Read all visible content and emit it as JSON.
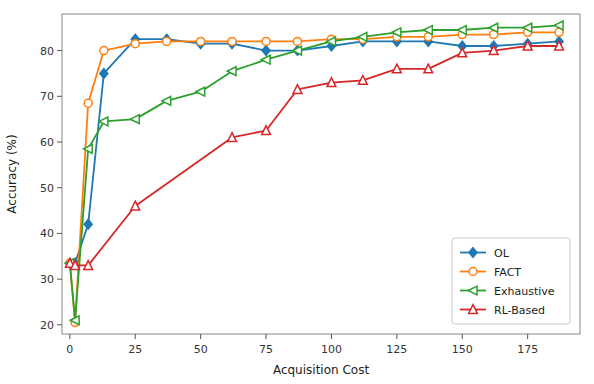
{
  "chart_data": {
    "type": "line",
    "xlabel": "Acquisition Cost",
    "ylabel": "Accuracy (%)",
    "series": [
      {
        "name": "OL",
        "color": "#1f77b4",
        "marker": "diamond",
        "x": [
          0,
          2,
          7,
          13,
          25,
          37,
          50,
          62,
          75,
          87,
          100,
          112,
          125,
          137,
          150,
          162,
          175,
          187
        ],
        "values": [
          33.5,
          33.5,
          42,
          75,
          82.5,
          82.5,
          81.5,
          81.5,
          80,
          80,
          81,
          82,
          82,
          82,
          81,
          81,
          81.5,
          82
        ]
      },
      {
        "name": "FACT",
        "color": "#ff7f0e",
        "marker": "circle-open",
        "x": [
          0,
          2,
          7,
          13,
          25,
          37,
          50,
          62,
          75,
          87,
          100,
          112,
          125,
          137,
          150,
          162,
          175,
          187
        ],
        "values": [
          33.5,
          20.5,
          68.5,
          80,
          81.5,
          82,
          82,
          82,
          82,
          82,
          82.5,
          82.5,
          83,
          83,
          83.5,
          83.5,
          84,
          84
        ]
      },
      {
        "name": "Exhaustive",
        "color": "#2ca02c",
        "marker": "triangle-left-open",
        "x": [
          0,
          2,
          7,
          13,
          25,
          37,
          50,
          62,
          75,
          87,
          100,
          112,
          125,
          137,
          150,
          162,
          175,
          187
        ],
        "values": [
          33.5,
          21,
          58.5,
          64.5,
          65,
          69,
          71,
          75.5,
          78,
          80,
          82,
          83,
          84,
          84.5,
          84.5,
          85,
          85,
          85.5
        ]
      },
      {
        "name": "RL-Based",
        "color": "#d62728",
        "marker": "triangle-up-open",
        "x": [
          0,
          2,
          7,
          25,
          62,
          75,
          87,
          100,
          112,
          125,
          137,
          150,
          162,
          175,
          187
        ],
        "values": [
          33.5,
          33,
          33,
          46,
          61,
          62.5,
          71.5,
          73,
          73.5,
          76,
          76,
          79.5,
          80,
          81,
          81
        ]
      }
    ],
    "xlim": [
      -3,
      195
    ],
    "ylim": [
      18,
      88
    ],
    "xticks": [
      0,
      25,
      50,
      75,
      100,
      125,
      150,
      175
    ],
    "yticks": [
      20,
      30,
      40,
      50,
      60,
      70,
      80
    ],
    "legend": "lower right",
    "grid": false
  }
}
